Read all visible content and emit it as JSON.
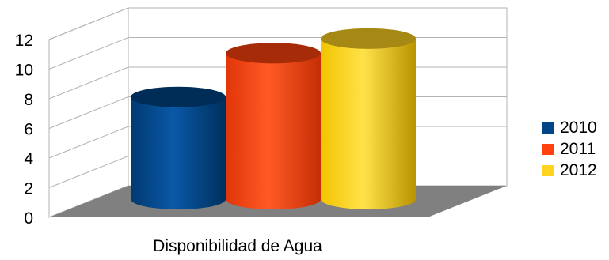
{
  "chart_data": {
    "type": "bar",
    "style": "3d-cylinder",
    "categories": [
      "Disponibilidad de Agua"
    ],
    "series": [
      {
        "name": "2010",
        "values": [
          7
        ],
        "color": "#004586"
      },
      {
        "name": "2011",
        "values": [
          10
        ],
        "color": "#ff420e"
      },
      {
        "name": "2012",
        "values": [
          11
        ],
        "color": "#ffd320"
      }
    ],
    "yticks": [
      "0",
      "2",
      "4",
      "6",
      "8",
      "10",
      "12"
    ],
    "ylim": [
      0,
      12
    ],
    "grid": true,
    "legend_position": "right",
    "floor_color": "#808080"
  }
}
